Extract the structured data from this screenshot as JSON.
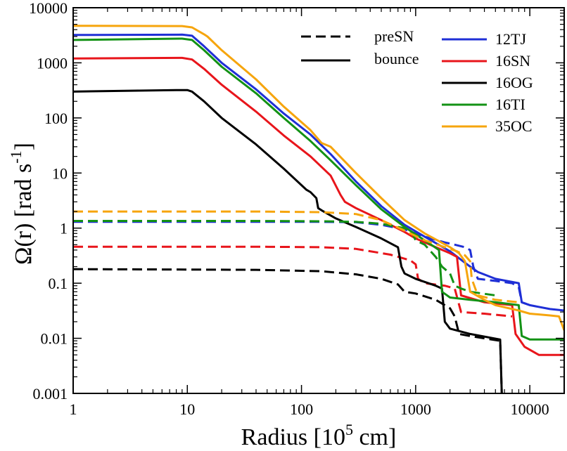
{
  "chart_data": {
    "type": "line",
    "title": "",
    "xlabel_main": "Radius [10",
    "xlabel_sup": "5",
    "xlabel_tail": " cm]",
    "ylabel_main": "Ω(r) [rad s",
    "ylabel_sup": "-1",
    "ylabel_tail": "]",
    "xscale": "log",
    "yscale": "log",
    "xlim": [
      1,
      20000
    ],
    "ylim": [
      0.001,
      10000
    ],
    "x_ticks": [
      1,
      10,
      100,
      1000,
      10000
    ],
    "x_tick_labels": [
      "1",
      "10",
      "100",
      "1000",
      "10000"
    ],
    "y_ticks": [
      0.001,
      0.01,
      0.1,
      1,
      10,
      100,
      1000,
      10000
    ],
    "y_tick_labels": [
      "0.001",
      "0.01",
      "0.1",
      "1",
      "10",
      "100",
      "1000",
      "10000"
    ],
    "legend_styles": [
      {
        "label": "preSN",
        "dash": true
      },
      {
        "label": "bounce",
        "dash": false
      }
    ],
    "series": [
      {
        "name": "12TJ",
        "color": "#1f2fd6",
        "bounce": [
          [
            1,
            3200
          ],
          [
            9,
            3250
          ],
          [
            11,
            3100
          ],
          [
            14,
            2000
          ],
          [
            20,
            1000
          ],
          [
            40,
            330
          ],
          [
            70,
            120
          ],
          [
            120,
            50
          ],
          [
            180,
            22
          ],
          [
            300,
            7
          ],
          [
            500,
            2.5
          ],
          [
            800,
            1.15
          ],
          [
            1200,
            0.7
          ],
          [
            2000,
            0.38
          ],
          [
            2600,
            0.25
          ],
          [
            3000,
            0.2
          ],
          [
            3500,
            0.16
          ],
          [
            5000,
            0.12
          ],
          [
            8000,
            0.1
          ],
          [
            8500,
            0.045
          ],
          [
            10000,
            0.04
          ],
          [
            15000,
            0.034
          ],
          [
            20000,
            0.032
          ]
        ],
        "preSN": [
          [
            1,
            1.3
          ],
          [
            40,
            1.3
          ],
          [
            150,
            1.3
          ],
          [
            300,
            1.28
          ],
          [
            500,
            1.15
          ],
          [
            800,
            0.95
          ],
          [
            1200,
            0.7
          ],
          [
            1800,
            0.55
          ],
          [
            2200,
            0.5
          ],
          [
            2700,
            0.45
          ],
          [
            3000,
            0.4
          ],
          [
            3200,
            0.2
          ],
          [
            3500,
            0.12
          ],
          [
            5000,
            0.11
          ],
          [
            7000,
            0.1
          ],
          [
            8000,
            0.085
          ],
          [
            8500,
            0.045
          ],
          [
            10000,
            0.04
          ]
        ]
      },
      {
        "name": "16SN",
        "color": "#e8151b",
        "bounce": [
          [
            1,
            1200
          ],
          [
            9,
            1230
          ],
          [
            11,
            1150
          ],
          [
            14,
            780
          ],
          [
            20,
            400
          ],
          [
            40,
            130
          ],
          [
            70,
            48
          ],
          [
            120,
            20
          ],
          [
            180,
            9
          ],
          [
            220,
            4
          ],
          [
            240,
            3
          ],
          [
            300,
            2.3
          ],
          [
            500,
            1.4
          ],
          [
            800,
            0.85
          ],
          [
            1000,
            0.65
          ],
          [
            1500,
            0.45
          ],
          [
            2000,
            0.35
          ],
          [
            2300,
            0.3
          ],
          [
            2500,
            0.06
          ],
          [
            4000,
            0.045
          ],
          [
            7000,
            0.04
          ],
          [
            7500,
            0.012
          ],
          [
            9000,
            0.007
          ],
          [
            12000,
            0.005
          ],
          [
            20000,
            0.005
          ]
        ],
        "preSN": [
          [
            1,
            0.46
          ],
          [
            40,
            0.46
          ],
          [
            150,
            0.45
          ],
          [
            300,
            0.42
          ],
          [
            600,
            0.33
          ],
          [
            900,
            0.26
          ],
          [
            1000,
            0.22
          ],
          [
            1050,
            0.12
          ],
          [
            1200,
            0.1
          ],
          [
            1800,
            0.09
          ],
          [
            2200,
            0.08
          ],
          [
            2500,
            0.03
          ],
          [
            4000,
            0.028
          ],
          [
            7000,
            0.025
          ]
        ]
      },
      {
        "name": "16OG",
        "color": "#000000",
        "bounce": [
          [
            1,
            300
          ],
          [
            8,
            320
          ],
          [
            10,
            320
          ],
          [
            11,
            300
          ],
          [
            14,
            200
          ],
          [
            20,
            100
          ],
          [
            40,
            33
          ],
          [
            70,
            12
          ],
          [
            110,
            5
          ],
          [
            120,
            4.5
          ],
          [
            135,
            3.5
          ],
          [
            140,
            2.3
          ],
          [
            150,
            2.1
          ],
          [
            200,
            1.5
          ],
          [
            300,
            1.05
          ],
          [
            500,
            0.65
          ],
          [
            700,
            0.45
          ],
          [
            750,
            0.2
          ],
          [
            800,
            0.15
          ],
          [
            1000,
            0.12
          ],
          [
            1500,
            0.09
          ],
          [
            1700,
            0.08
          ],
          [
            1800,
            0.02
          ],
          [
            2000,
            0.015
          ],
          [
            3000,
            0.012
          ],
          [
            5500,
            0.0095
          ],
          [
            5700,
            0.0008
          ]
        ],
        "preSN": [
          [
            1,
            0.18
          ],
          [
            40,
            0.175
          ],
          [
            150,
            0.165
          ],
          [
            300,
            0.145
          ],
          [
            500,
            0.12
          ],
          [
            700,
            0.095
          ],
          [
            800,
            0.07
          ],
          [
            1000,
            0.065
          ],
          [
            1500,
            0.05
          ],
          [
            1800,
            0.04
          ],
          [
            2000,
            0.035
          ],
          [
            2200,
            0.025
          ],
          [
            2400,
            0.012
          ],
          [
            3000,
            0.011
          ],
          [
            5500,
            0.009
          ],
          [
            5700,
            0.0008
          ]
        ]
      },
      {
        "name": "16TI",
        "color": "#139215",
        "bounce": [
          [
            1,
            2600
          ],
          [
            9,
            2750
          ],
          [
            11,
            2600
          ],
          [
            14,
            1700
          ],
          [
            20,
            850
          ],
          [
            40,
            280
          ],
          [
            70,
            100
          ],
          [
            120,
            38
          ],
          [
            180,
            17
          ],
          [
            300,
            6
          ],
          [
            500,
            2.2
          ],
          [
            800,
            1.05
          ],
          [
            1200,
            0.6
          ],
          [
            1600,
            0.4
          ],
          [
            1700,
            0.07
          ],
          [
            2000,
            0.055
          ],
          [
            3000,
            0.05
          ],
          [
            5000,
            0.045
          ],
          [
            8000,
            0.04
          ],
          [
            8500,
            0.011
          ],
          [
            10000,
            0.0095
          ],
          [
            20000,
            0.0095
          ]
        ],
        "preSN": [
          [
            1,
            1.35
          ],
          [
            40,
            1.35
          ],
          [
            150,
            1.33
          ],
          [
            300,
            1.3
          ],
          [
            500,
            1.2
          ],
          [
            700,
            1.05
          ],
          [
            900,
            0.95
          ],
          [
            1000,
            0.6
          ],
          [
            1200,
            0.5
          ],
          [
            1500,
            0.3
          ],
          [
            1700,
            0.2
          ],
          [
            2000,
            0.15
          ],
          [
            2200,
            0.09
          ],
          [
            2500,
            0.08
          ],
          [
            3000,
            0.07
          ],
          [
            5000,
            0.06
          ]
        ]
      },
      {
        "name": "35OC",
        "color": "#f6a50d",
        "bounce": [
          [
            1,
            4700
          ],
          [
            9,
            4650
          ],
          [
            11,
            4400
          ],
          [
            14,
            3300
          ],
          [
            15,
            3000
          ],
          [
            20,
            1700
          ],
          [
            40,
            500
          ],
          [
            70,
            160
          ],
          [
            120,
            60
          ],
          [
            150,
            35
          ],
          [
            180,
            30
          ],
          [
            300,
            10
          ],
          [
            500,
            3.5
          ],
          [
            800,
            1.4
          ],
          [
            1200,
            0.8
          ],
          [
            2000,
            0.45
          ],
          [
            2400,
            0.35
          ],
          [
            2700,
            0.25
          ],
          [
            3000,
            0.07
          ],
          [
            4000,
            0.05
          ],
          [
            5000,
            0.04
          ],
          [
            8000,
            0.032
          ],
          [
            10000,
            0.028
          ],
          [
            15000,
            0.026
          ],
          [
            18000,
            0.025
          ],
          [
            20000,
            0.014
          ]
        ],
        "preSN": [
          [
            1,
            2.0
          ],
          [
            40,
            2.0
          ],
          [
            150,
            1.95
          ],
          [
            300,
            1.8
          ],
          [
            500,
            1.4
          ],
          [
            800,
            0.9
          ],
          [
            1200,
            0.6
          ],
          [
            1800,
            0.45
          ],
          [
            2300,
            0.38
          ],
          [
            2700,
            0.32
          ],
          [
            3000,
            0.25
          ],
          [
            3100,
            0.12
          ],
          [
            3500,
            0.06
          ],
          [
            5000,
            0.05
          ],
          [
            8000,
            0.045
          ]
        ]
      }
    ]
  }
}
